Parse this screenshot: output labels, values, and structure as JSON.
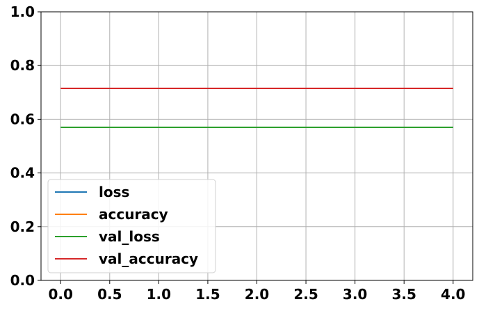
{
  "chart_data": {
    "type": "line",
    "title": "",
    "xlabel": "",
    "ylabel": "",
    "x": [
      0,
      1,
      2,
      3,
      4
    ],
    "xlim": [
      -0.2,
      4.2
    ],
    "ylim": [
      0.0,
      1.0
    ],
    "xticks": [
      0.0,
      0.5,
      1.0,
      1.5,
      2.0,
      2.5,
      3.0,
      3.5,
      4.0
    ],
    "yticks": [
      0.0,
      0.2,
      0.4,
      0.6,
      0.8,
      1.0
    ],
    "xtick_labels": [
      "0.0",
      "0.5",
      "1.0",
      "1.5",
      "2.0",
      "2.5",
      "3.0",
      "3.5",
      "4.0"
    ],
    "ytick_labels": [
      "0.0",
      "0.2",
      "0.4",
      "0.6",
      "0.8",
      "1.0"
    ],
    "grid": true,
    "legend_position": "lower-left",
    "series": [
      {
        "name": "loss",
        "color": "#1f77b4",
        "values": [
          0.57,
          0.57,
          0.57,
          0.57,
          0.57
        ]
      },
      {
        "name": "accuracy",
        "color": "#ff7f0e",
        "values": [
          0.715,
          0.715,
          0.715,
          0.715,
          0.715
        ]
      },
      {
        "name": "val_loss",
        "color": "#2ca02c",
        "values": [
          0.57,
          0.57,
          0.57,
          0.57,
          0.57
        ]
      },
      {
        "name": "val_accuracy",
        "color": "#d62728",
        "values": [
          0.715,
          0.715,
          0.715,
          0.715,
          0.715
        ]
      }
    ]
  }
}
